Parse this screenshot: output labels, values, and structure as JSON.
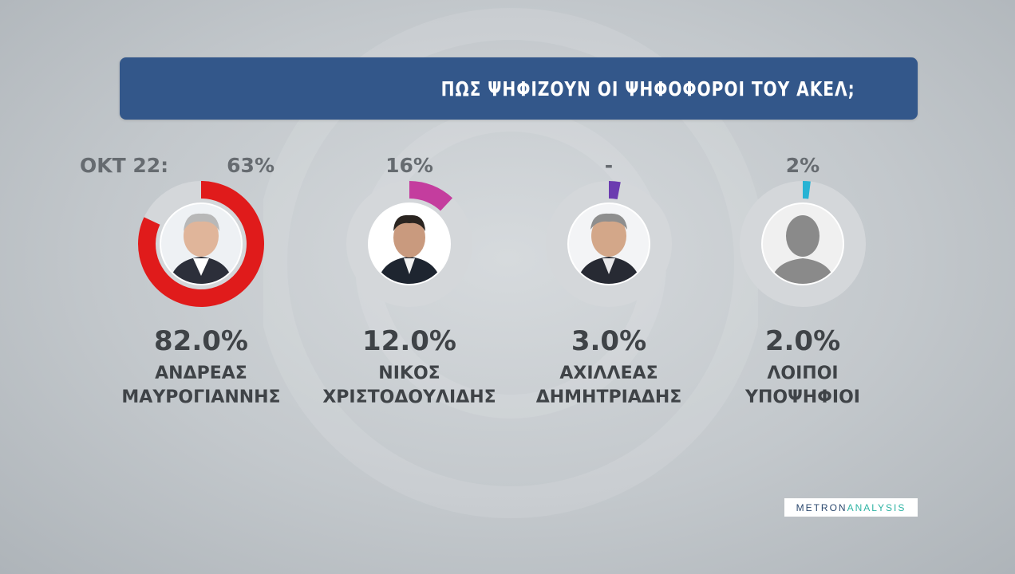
{
  "title": "ΠΩΣ ΨΗΦΙΖΟΥΝ ΟΙ ΨΗΦΟΦΟΡΟΙ ΤΟΥ ΑΚΕΛ;",
  "prev_label": "ΟΚΤ 22:",
  "logo": {
    "part1": "METRON",
    "part2": "ANALYSIS"
  },
  "candidates": [
    {
      "name1": "ΑΝΔΡΕΑΣ",
      "name2": "ΜΑΥΡΟΓΙΑΝΝΗΣ",
      "pct_label": "82.0%",
      "prev": "63%",
      "color": "#e01b1b",
      "photo": "photo-mavrogiannis"
    },
    {
      "name1": "ΝΙΚΟΣ",
      "name2": "ΧΡΙΣΤΟΔΟΥΛΙΔΗΣ",
      "pct_label": "12.0%",
      "prev": "16%",
      "color": "#c43d9e",
      "photo": "photo-christodoulides"
    },
    {
      "name1": "ΑΧΙΛΛΕΑΣ",
      "name2": "ΔΗΜΗΤΡΙΑΔΗΣ",
      "pct_label": "3.0%",
      "prev": "-",
      "color": "#6b3bb0",
      "photo": "photo-dimitriadis"
    },
    {
      "name1": "ΛΟΙΠΟΙ",
      "name2": "ΥΠΟΨΗΦΙΟΙ",
      "pct_label": "2.0%",
      "prev": "2%",
      "color": "#27b3d4",
      "photo": "silhouette-placeholder"
    }
  ],
  "chart_data": {
    "type": "pie",
    "title": "ΠΩΣ ΨΗΦΙΖΟΥΝ ΟΙ ΨΗΦΟΦΟΡΟΙ ΤΟΥ ΑΚΕΛ;",
    "categories": [
      "ΑΝΔΡΕΑΣ ΜΑΥΡΟΓΙΑΝΝΗΣ",
      "ΝΙΚΟΣ ΧΡΙΣΤΟΔΟΥΛΙΔΗΣ",
      "ΑΧΙΛΛΕΑΣ ΔΗΜΗΤΡΙΑΔΗΣ",
      "ΛΟΙΠΟΙ ΥΠΟΨΗΦΙΟΙ"
    ],
    "values": [
      82.0,
      12.0,
      3.0,
      2.0
    ],
    "previous_label": "ΟΚΤ 22:",
    "previous_values": [
      "63%",
      "16%",
      "-",
      "2%"
    ],
    "colors": [
      "#e01b1b",
      "#c43d9e",
      "#6b3bb0",
      "#27b3d4"
    ]
  }
}
